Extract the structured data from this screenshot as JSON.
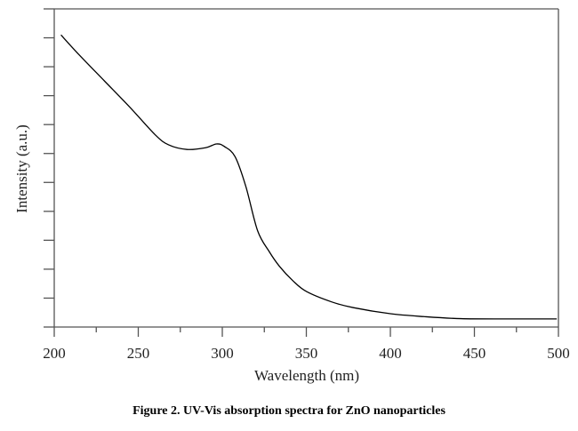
{
  "chart_data": {
    "type": "line",
    "title": "",
    "xlabel": "Wavelength (nm)",
    "ylabel": "Intensity (a.u.)",
    "xlim": [
      200,
      500
    ],
    "ylim": [
      0,
      11
    ],
    "x_ticks": [
      200,
      250,
      300,
      350,
      400,
      450,
      500
    ],
    "x_tick_labels": [
      "200",
      "250",
      "300",
      "350",
      "400",
      "450",
      "500"
    ],
    "x_minor_step": 25,
    "y_ticks_count": 11,
    "y_tick_labels_shown": false,
    "grid": false,
    "series": [
      {
        "name": "ZnO nanoparticles",
        "color": "#000000",
        "x": [
          204,
          215,
          230,
          245,
          260,
          268,
          279,
          290,
          296.5,
          301,
          307.6,
          314,
          321,
          328,
          334,
          342,
          350,
          365,
          378,
          400,
          420,
          442,
          470,
          499
        ],
        "y": [
          10.1,
          9.4,
          8.5,
          7.6,
          6.65,
          6.3,
          6.14,
          6.2,
          6.33,
          6.25,
          5.89,
          4.86,
          3.33,
          2.6,
          2.1,
          1.6,
          1.23,
          0.87,
          0.67,
          0.46,
          0.36,
          0.29,
          0.28,
          0.28
        ]
      }
    ]
  },
  "caption": "Figure 2. UV-Vis absorption spectra for ZnO nanoparticles"
}
